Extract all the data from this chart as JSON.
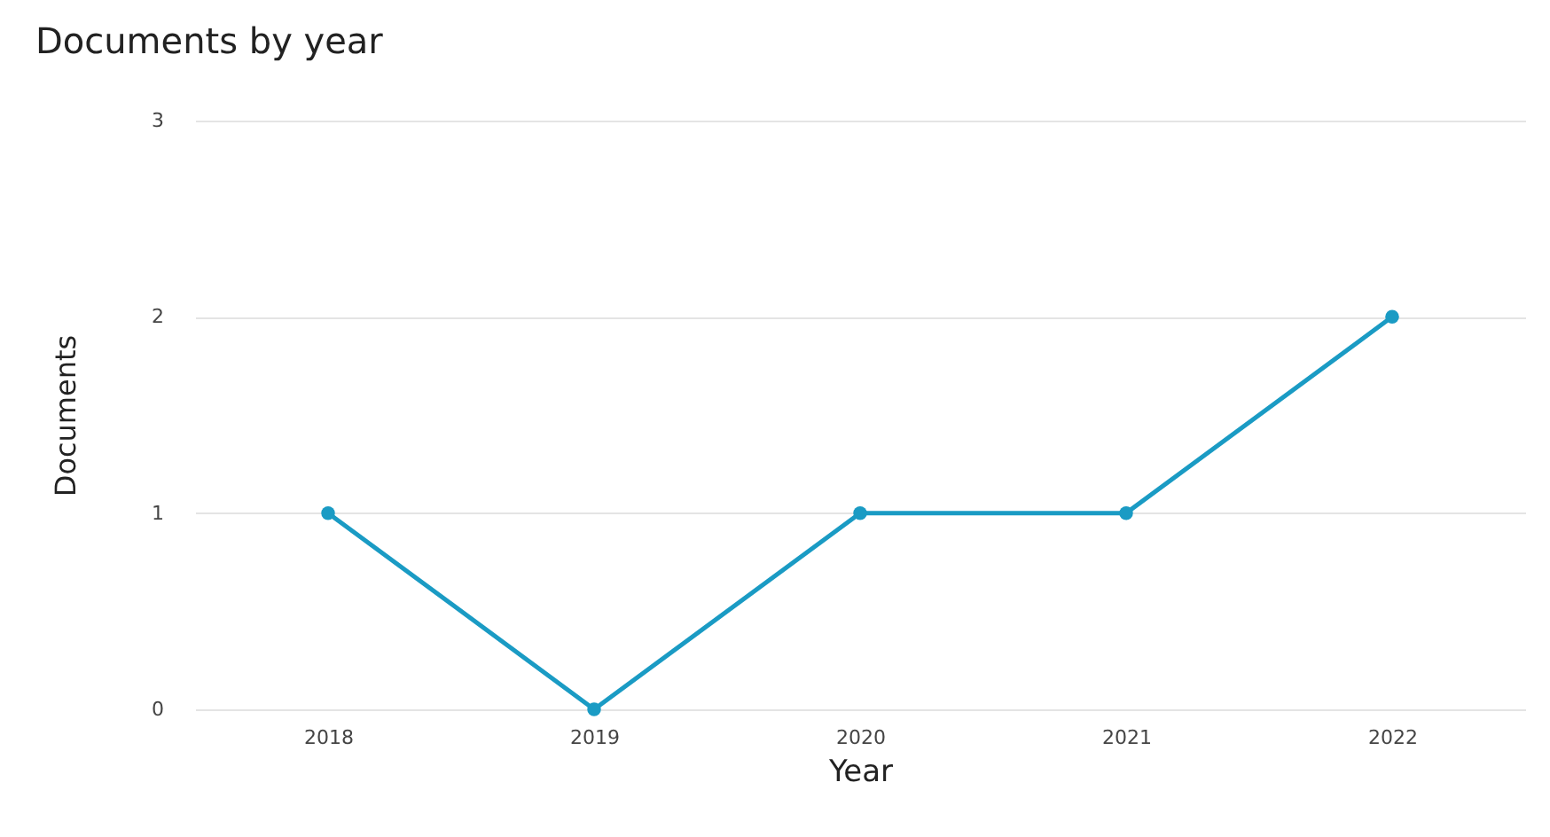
{
  "chart_data": {
    "type": "line",
    "title": "Documents by year",
    "xlabel": "Year",
    "ylabel": "Documents",
    "categories": [
      "2018",
      "2019",
      "2020",
      "2021",
      "2022"
    ],
    "series": [
      {
        "color": "#1a9bc4",
        "values": [
          1,
          0,
          1,
          1,
          2
        ]
      }
    ],
    "ylim": [
      0,
      3
    ],
    "yticks": [
      0,
      1,
      2,
      3
    ],
    "grid": "y",
    "marker": "circle",
    "line_style": "solid"
  }
}
